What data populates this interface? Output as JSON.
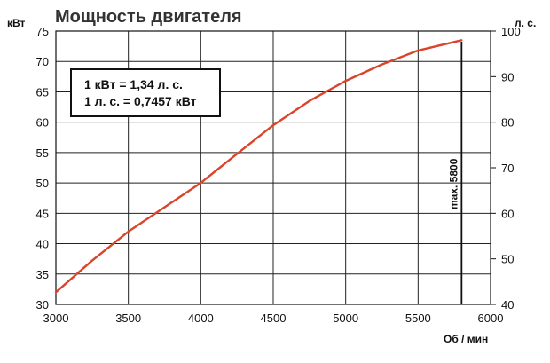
{
  "chart_data": {
    "type": "line",
    "title": "Мощность двигателя",
    "ylabel_left": "кВт",
    "ylabel_right": "л. с.",
    "xlabel": "Об / мин",
    "xlim": [
      3000,
      6000
    ],
    "ylim_left": [
      30,
      75
    ],
    "ylim_right": [
      40,
      100
    ],
    "xticks": [
      "3000",
      "3500",
      "4000",
      "4500",
      "5000",
      "5500",
      "6000"
    ],
    "yticks_left": [
      "30",
      "35",
      "40",
      "45",
      "50",
      "55",
      "60",
      "65",
      "70",
      "75"
    ],
    "yticks_right": [
      "40",
      "50",
      "60",
      "70",
      "80",
      "90",
      "100"
    ],
    "grid": true,
    "series": [
      {
        "color": "#d9452b",
        "x": [
          3000,
          3250,
          3500,
          3750,
          4000,
          4250,
          4500,
          4750,
          5000,
          5250,
          5500,
          5800
        ],
        "y": [
          32.0,
          37.2,
          42.0,
          46.0,
          50.0,
          54.8,
          59.5,
          63.5,
          66.8,
          69.5,
          71.8,
          73.5
        ]
      }
    ],
    "annotation_box": [
      "1 кВт = 1,34 л. с.",
      "1 л. с. = 0,7457 кВт"
    ],
    "vline": {
      "x": 5800,
      "label": "max. 5800"
    }
  }
}
